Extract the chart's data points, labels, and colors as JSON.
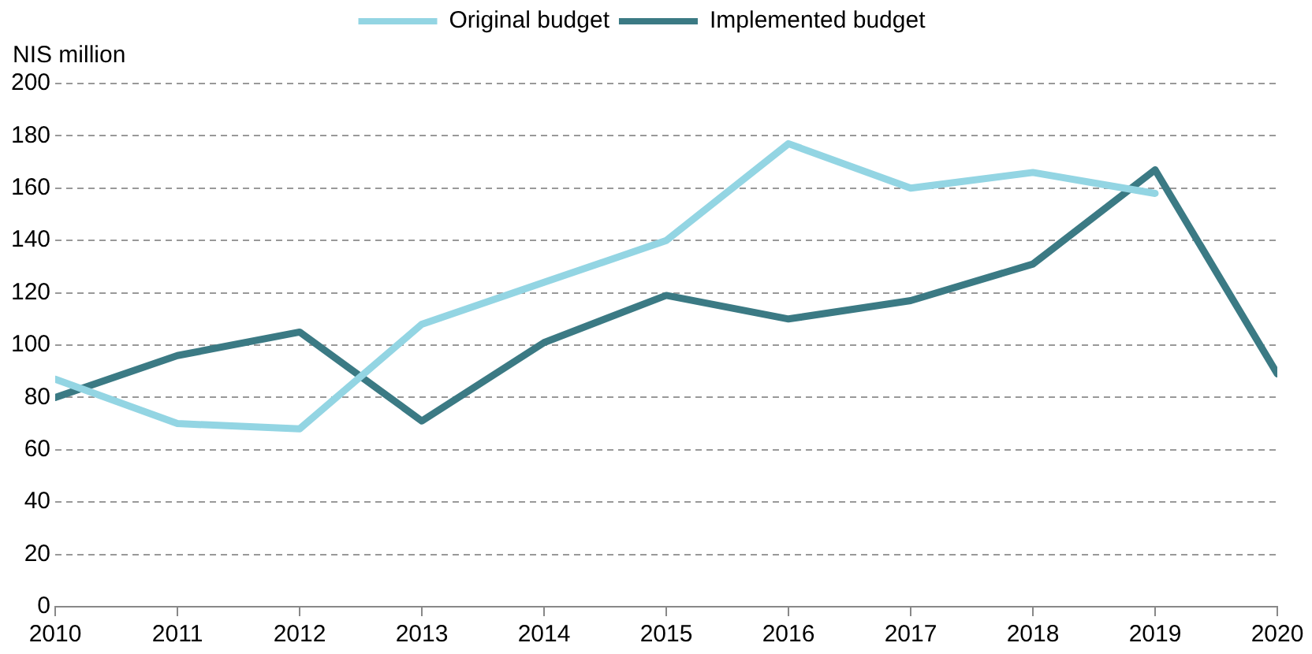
{
  "chart_data": {
    "type": "line",
    "ylabel": "NIS million",
    "x": [
      2010,
      2011,
      2012,
      2013,
      2014,
      2015,
      2016,
      2017,
      2018,
      2019,
      2020
    ],
    "series": [
      {
        "name": "Original budget",
        "color": "#93d5e3",
        "values": [
          87,
          70,
          68,
          108,
          124,
          140,
          177,
          160,
          166,
          158,
          null
        ]
      },
      {
        "name": "Implemented budget",
        "color": "#3b7a84",
        "values": [
          80,
          96,
          105,
          71,
          101,
          119,
          110,
          117,
          131,
          167,
          89
        ]
      }
    ],
    "xlim": [
      2010,
      2020
    ],
    "xticks": [
      2010,
      2011,
      2012,
      2013,
      2014,
      2015,
      2016,
      2017,
      2018,
      2019,
      2020
    ],
    "ylim": [
      0,
      200
    ],
    "yticks": [
      0,
      20,
      40,
      60,
      80,
      100,
      120,
      140,
      160,
      180,
      200
    ],
    "grid": "y",
    "legend": "top",
    "marker": "none",
    "line_style": "solid"
  }
}
